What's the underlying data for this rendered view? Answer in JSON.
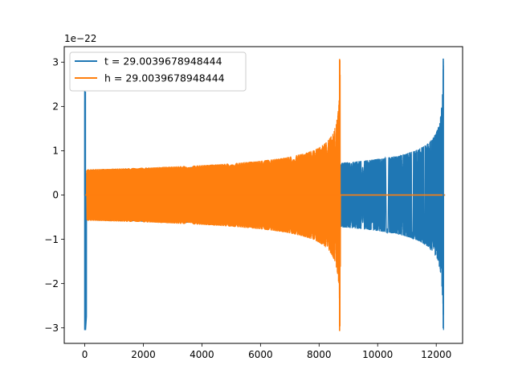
{
  "chart_data": {
    "type": "line",
    "title": "",
    "xlabel": "",
    "ylabel": "",
    "y_offset_label": "1e−22",
    "xlim": [
      -700,
      12900
    ],
    "ylim": [
      -3.35,
      3.35
    ],
    "xticks": [
      0,
      2000,
      4000,
      6000,
      8000,
      10000,
      12000
    ],
    "xtick_labels": [
      "0",
      "2000",
      "4000",
      "6000",
      "8000",
      "10000",
      "12000"
    ],
    "yticks": [
      -3,
      -2,
      -1,
      0,
      1,
      2,
      3
    ],
    "ytick_labels": [
      "−3",
      "−2",
      "−1",
      "0",
      "1",
      "2",
      "3"
    ],
    "grid": false,
    "legend_position": "top-left",
    "series": [
      {
        "name": "t = 29.0039678948444",
        "color": "#1f77b4",
        "description_points": [
          {
            "x": 0,
            "y": 2.35
          },
          {
            "x": 30,
            "y": -3.05
          },
          {
            "x": 100,
            "y": 0.57
          },
          {
            "x": 4000,
            "y": 0.6
          },
          {
            "x": 8700,
            "y": 0.7
          },
          {
            "x": 8760,
            "y": 0.73
          },
          {
            "x": 10000,
            "y": 0.8
          },
          {
            "x": 11500,
            "y": 1.2
          },
          {
            "x": 12230,
            "y": 3.08
          },
          {
            "x": 12240,
            "y": -2.7
          },
          {
            "x": 12280,
            "y": 0
          }
        ]
      },
      {
        "name": "h = 29.0039678948444",
        "color": "#ff7f0e",
        "description_points": [
          {
            "x": 0,
            "y": 0
          },
          {
            "x": 50,
            "y": 0.58
          },
          {
            "x": 2000,
            "y": 0.6
          },
          {
            "x": 6000,
            "y": 0.8
          },
          {
            "x": 8000,
            "y": 1.2
          },
          {
            "x": 8700,
            "y": 3.07
          },
          {
            "x": 8720,
            "y": -3.07
          },
          {
            "x": 8760,
            "y": 0
          },
          {
            "x": 12300,
            "y": 0
          }
        ]
      }
    ]
  }
}
